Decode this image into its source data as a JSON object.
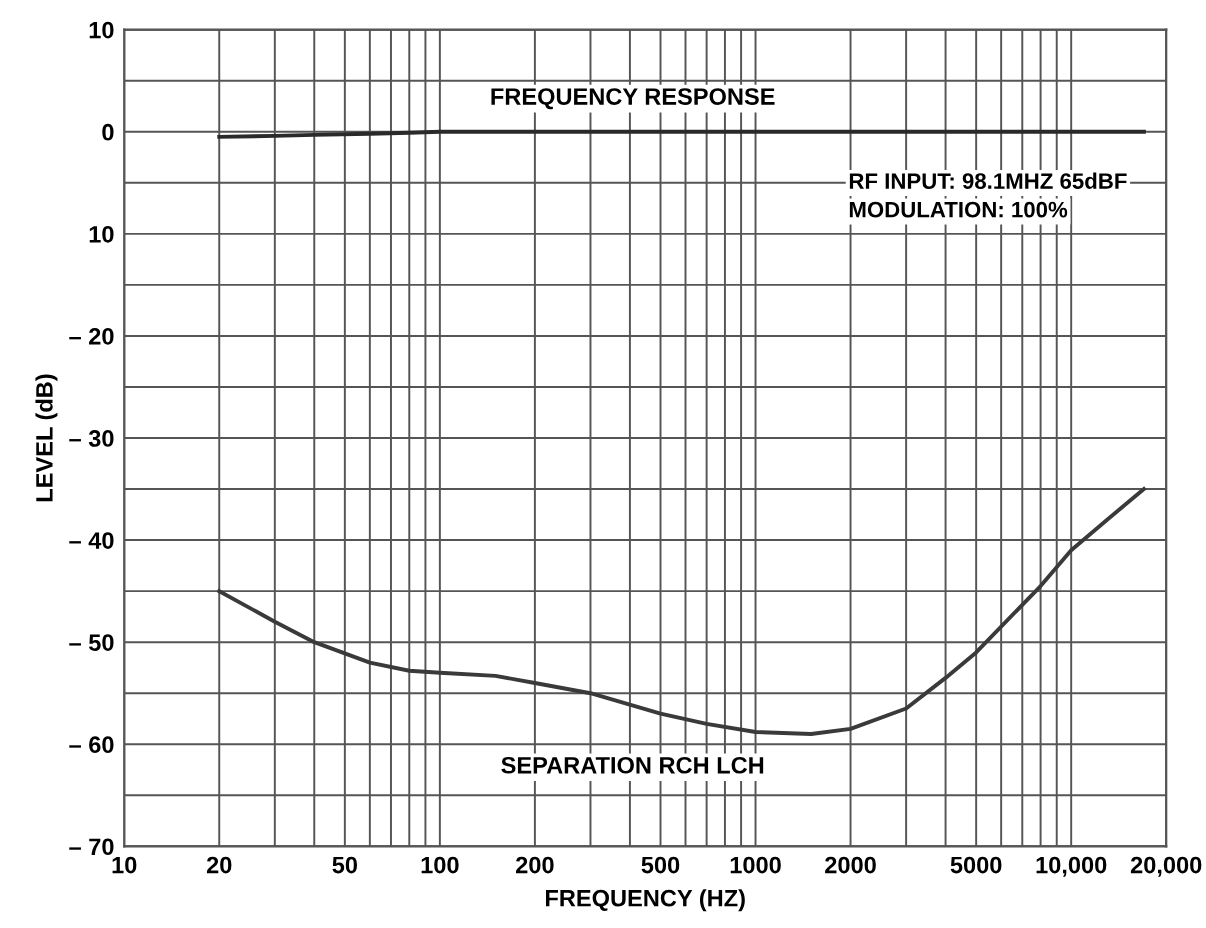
{
  "chart_data": {
    "type": "line",
    "xlabel": "FREQUENCY (HZ)",
    "ylabel": "LEVEL (dB)",
    "x": [
      20,
      30,
      40,
      60,
      80,
      100,
      150,
      200,
      300,
      500,
      700,
      1000,
      1500,
      2000,
      3000,
      4000,
      5000,
      8000,
      10000,
      13000,
      17000
    ],
    "series": [
      {
        "name": "FREQUENCY RESPONSE",
        "color": "#2a2a2a",
        "values": [
          -0.5,
          -0.4,
          -0.3,
          -0.2,
          -0.1,
          0,
          0,
          0,
          0,
          0,
          0,
          0,
          0,
          0,
          0,
          0,
          0,
          0,
          0,
          0,
          0
        ]
      },
      {
        "name": "SEPARATION RCH LCH",
        "color": "#3a3a3a",
        "values": [
          -45,
          -48,
          -50,
          -52,
          -52.8,
          -53,
          -53.3,
          -54,
          -55,
          -57,
          -58,
          -58.8,
          -59,
          -58.5,
          -56.5,
          -53.5,
          -51,
          -44.5,
          -41,
          -38,
          -35
        ]
      }
    ],
    "log": "x",
    "xlim": [
      10,
      20000
    ],
    "ylim": [
      -70,
      10
    ],
    "xticks": [
      10,
      20,
      50,
      100,
      200,
      500,
      1000,
      2000,
      5000,
      {
        "value": 10000,
        "label": "10,000"
      },
      {
        "value": 20000,
        "label": "20,000"
      }
    ],
    "yticks": [
      10,
      0,
      {
        "value": -10,
        "label": "10"
      },
      {
        "value": -20,
        "label": "– 20"
      },
      {
        "value": -30,
        "label": "– 30"
      },
      {
        "value": -40,
        "label": "– 40"
      },
      {
        "value": -50,
        "label": "– 50"
      },
      {
        "value": -60,
        "label": "– 60"
      },
      {
        "value": -70,
        "label": "– 70"
      }
    ],
    "grid": true,
    "line_style": "solid",
    "marker": "none",
    "annotations": [
      "RF INPUT: 98.1MHZ 65dBF",
      "MODULATION: 100%"
    ]
  }
}
